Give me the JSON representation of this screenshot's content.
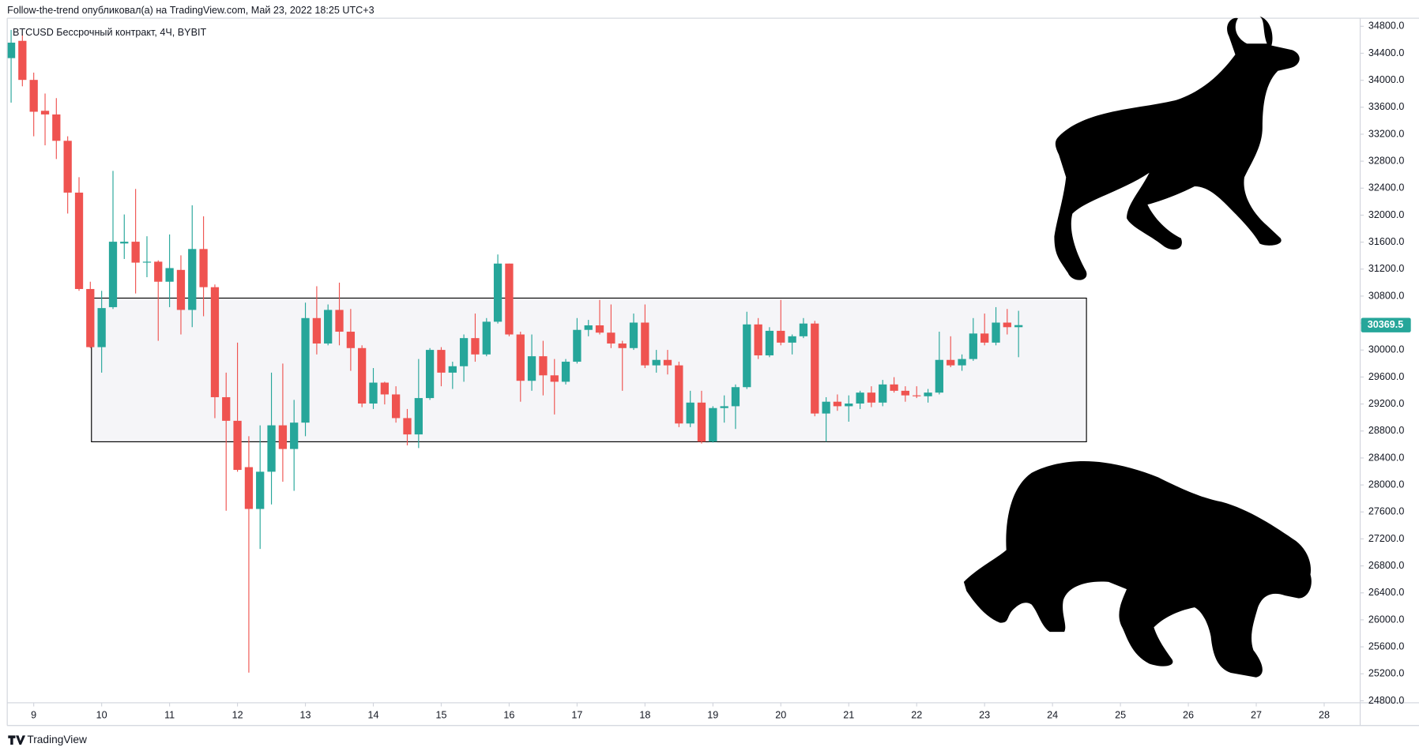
{
  "chart_data": {
    "type": "candlestick",
    "header": "Follow-the-trend опубликовал(а) на TradingView.com, Май 23, 2022 18:25 UTC+3",
    "title": "BTCUSD Бессрочный контракт, 4Ч, BYBIT",
    "brand": "TradingView",
    "up_color": "#26a69a",
    "down_color": "#ef5350",
    "grid": false,
    "xlim": [
      8.61,
      28.53
    ],
    "xticks": [
      9,
      10,
      11,
      12,
      13,
      14,
      15,
      16,
      17,
      18,
      19,
      20,
      21,
      22,
      23,
      24,
      25,
      26,
      27,
      28
    ],
    "ylim": [
      24770,
      34920
    ],
    "yticks": [
      {
        "value": 24800,
        "label": "24800.0"
      },
      {
        "value": 25200,
        "label": "25200.0"
      },
      {
        "value": 25600,
        "label": "25600.0"
      },
      {
        "value": 26000,
        "label": "26000.0"
      },
      {
        "value": 26400,
        "label": "26400.0"
      },
      {
        "value": 26800,
        "label": "26800.0"
      },
      {
        "value": 27200,
        "label": "27200.0"
      },
      {
        "value": 27600,
        "label": "27600.0"
      },
      {
        "value": 28000,
        "label": "28000.0"
      },
      {
        "value": 28400,
        "label": "28400.0"
      },
      {
        "value": 28800,
        "label": "28800.0"
      },
      {
        "value": 29200,
        "label": "29200.0"
      },
      {
        "value": 29600,
        "label": "29600.0"
      },
      {
        "value": 30000,
        "label": "30000.0"
      },
      {
        "value": 30400,
        "label": "30400.0"
      },
      {
        "value": 30800,
        "label": "30800.0"
      },
      {
        "value": 31200,
        "label": "31200.0"
      },
      {
        "value": 31600,
        "label": "31600.0"
      },
      {
        "value": 32000,
        "label": "32000.0"
      },
      {
        "value": 32400,
        "label": "32400.0"
      },
      {
        "value": 32800,
        "label": "32800.0"
      },
      {
        "value": 33200,
        "label": "33200.0"
      },
      {
        "value": 33600,
        "label": "33600.0"
      },
      {
        "value": 34000,
        "label": "34000.0"
      },
      {
        "value": 34400,
        "label": "34400.0"
      },
      {
        "value": 34800,
        "label": "34800.0"
      }
    ],
    "last_price": 30369.5,
    "range_box": {
      "xlim": [
        9.85,
        24.5
      ],
      "ylim": [
        28640,
        30770
      ]
    },
    "x": [
      8.667,
      8.833,
      9,
      9.167,
      9.333,
      9.5,
      9.667,
      9.833,
      10,
      10.167,
      10.333,
      10.5,
      10.667,
      10.833,
      11,
      11.167,
      11.333,
      11.5,
      11.667,
      11.833,
      12,
      12.167,
      12.333,
      12.5,
      12.667,
      12.833,
      13,
      13.167,
      13.333,
      13.5,
      13.667,
      13.833,
      14,
      14.167,
      14.333,
      14.5,
      14.667,
      14.833,
      15,
      15.167,
      15.333,
      15.5,
      15.667,
      15.833,
      16,
      16.167,
      16.333,
      16.5,
      16.667,
      16.833,
      17,
      17.167,
      17.333,
      17.5,
      17.667,
      17.833,
      18,
      18.167,
      18.333,
      18.5,
      18.667,
      18.833,
      19,
      19.167,
      19.333,
      19.5,
      19.667,
      19.833,
      20,
      20.167,
      20.333,
      20.5,
      20.667,
      20.833,
      21,
      21.167,
      21.333,
      21.5,
      21.667,
      21.833,
      22,
      22.167,
      22.333,
      22.5,
      22.667,
      22.833,
      23,
      23.167,
      23.333,
      23.5
    ],
    "open": [
      34328,
      34584,
      34005,
      33547,
      33493,
      33102,
      32334,
      30905,
      30043,
      30636,
      31580,
      31606,
      31296,
      31310,
      31013,
      31188,
      30595,
      31498,
      30932,
      29301,
      28951,
      28264,
      27644,
      28196,
      28884,
      28533,
      28924,
      30474,
      30097,
      30595,
      30272,
      30029,
      29207,
      29517,
      29342,
      28991,
      28749,
      29288,
      30002,
      29665,
      29760,
      30177,
      29935,
      30420,
      31282,
      30231,
      29544,
      29908,
      29625,
      29530,
      29827,
      30299,
      30366,
      30258,
      30097,
      30029,
      30407,
      29773,
      29854,
      29773,
      28911,
      29221,
      28641,
      29140,
      29167,
      29450,
      30380,
      29921,
      30285,
      30110,
      30204,
      30393,
      29059,
      29234,
      29167,
      29207,
      29369,
      29221,
      29490,
      29396,
      29328,
      29315,
      29369,
      29854,
      29773,
      29867,
      30245,
      30110,
      30407,
      30339
    ],
    "high": [
      34746,
      34679,
      34113,
      33803,
      33735,
      33169,
      32563,
      31013,
      30878,
      32657,
      32010,
      32388,
      31687,
      31330,
      31714,
      31404,
      32145,
      31983,
      30972,
      29665,
      30110,
      28722,
      28884,
      29665,
      29800,
      29261,
      30703,
      30946,
      30676,
      30999,
      30609,
      30070,
      29733,
      29530,
      29463,
      29126,
      29867,
      30029,
      30043,
      29827,
      30231,
      30541,
      30474,
      31417,
      31282,
      30272,
      30231,
      30137,
      29867,
      29867,
      30474,
      30447,
      30743,
      30676,
      30137,
      30541,
      30676,
      30002,
      30002,
      29827,
      29396,
      29396,
      29167,
      29328,
      29490,
      30568,
      30474,
      30339,
      30743,
      30231,
      30474,
      30433,
      29301,
      29342,
      29328,
      29396,
      29463,
      29557,
      29598,
      29463,
      29463,
      29423,
      30272,
      30204,
      29935,
      30474,
      30541,
      30636,
      30609,
      30582
    ],
    "low": [
      33668,
      33910,
      33169,
      33035,
      32832,
      32024,
      30878,
      30029,
      29665,
      30609,
      31350,
      30838,
      31080,
      30137,
      30636,
      30231,
      30339,
      30501,
      28991,
      27617,
      28196,
      25218,
      27051,
      27711,
      28048,
      27913,
      28722,
      29935,
      30070,
      30070,
      29692,
      29153,
      29126,
      29194,
      28924,
      28587,
      28547,
      29261,
      29463,
      29423,
      29530,
      29827,
      29908,
      30393,
      30204,
      29234,
      29396,
      29328,
      29045,
      29490,
      29800,
      30204,
      30231,
      30029,
      29396,
      30002,
      29733,
      29665,
      29638,
      28857,
      28857,
      28614,
      28628,
      28924,
      28830,
      29423,
      29867,
      29894,
      30070,
      29935,
      30177,
      29018,
      28641,
      29099,
      28938,
      29126,
      29153,
      29167,
      29369,
      29234,
      29288,
      29221,
      29342,
      29746,
      29692,
      29840,
      30070,
      30070,
      30231,
      29894
    ],
    "close": [
      34557,
      34005,
      33533,
      33493,
      33102,
      32334,
      30905,
      30043,
      30622,
      31606,
      31606,
      31296,
      31310,
      31013,
      31215,
      30595,
      31498,
      30932,
      29301,
      28951,
      28223,
      27644,
      28196,
      28884,
      28533,
      28924,
      30474,
      30097,
      30595,
      30272,
      30029,
      29207,
      29517,
      29342,
      28991,
      28749,
      29288,
      30002,
      29665,
      29760,
      30177,
      29935,
      30420,
      31282,
      30231,
      29544,
      29908,
      29625,
      29530,
      29827,
      30299,
      30366,
      30258,
      30097,
      30029,
      30407,
      29773,
      29854,
      29773,
      28911,
      29221,
      28641,
      29140,
      29167,
      29450,
      30380,
      29921,
      30285,
      30110,
      30204,
      30393,
      29059,
      29234,
      29167,
      29207,
      29369,
      29221,
      29490,
      29396,
      29328,
      29315,
      29369,
      29854,
      29773,
      29867,
      30245,
      30110,
      30407,
      30339,
      30369.5
    ]
  }
}
